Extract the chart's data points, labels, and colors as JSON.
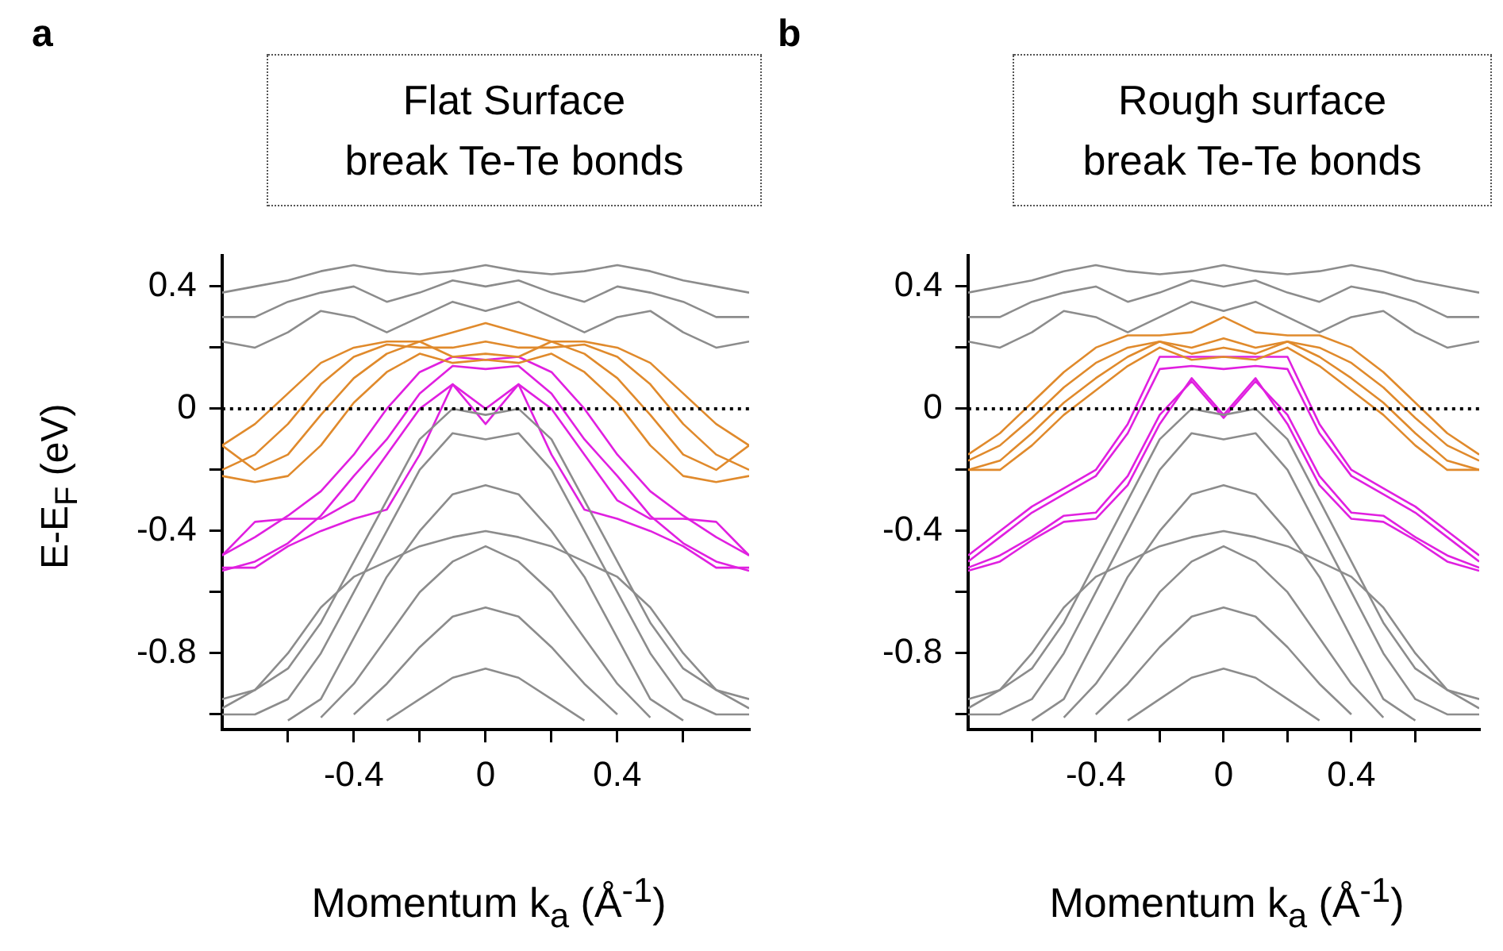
{
  "chart_data": [
    {
      "type": "line",
      "title": "Flat Surface\nbreak Te-Te bonds",
      "xlabel": "Momentum k$_{a}$  (Å$^{-1}$)",
      "ylabel": "E-E$_{F}$ (eV)",
      "annotations": [
        "a"
      ],
      "x": [
        -0.8,
        -0.7,
        -0.6,
        -0.5,
        -0.4,
        -0.3,
        -0.2,
        -0.1,
        0,
        0.1,
        0.2,
        0.3,
        0.4,
        0.5,
        0.6,
        0.7,
        0.8
      ],
      "series": [
        {
          "color": "#8c8c8c",
          "values": [
            -0.95,
            -0.92,
            -0.85,
            -0.7,
            -0.5,
            -0.3,
            -0.1,
            0,
            -0.02,
            0,
            -0.1,
            -0.3,
            -0.5,
            -0.7,
            -0.85,
            -0.92,
            -0.95
          ]
        },
        {
          "color": "#8c8c8c",
          "values": [
            -1,
            -1,
            -0.95,
            -0.8,
            -0.6,
            -0.4,
            -0.2,
            -0.08,
            -0.1,
            -0.08,
            -0.2,
            -0.4,
            -0.6,
            -0.8,
            -0.95,
            -1,
            -1
          ]
        },
        {
          "color": "#8c8c8c",
          "values": [
            null,
            null,
            -1.02,
            -0.95,
            -0.75,
            -0.55,
            -0.4,
            -0.28,
            -0.25,
            -0.28,
            -0.4,
            -0.55,
            -0.75,
            -0.95,
            -1.02,
            null,
            null
          ]
        },
        {
          "color": "#8c8c8c",
          "values": [
            null,
            null,
            null,
            -1.01,
            -0.9,
            -0.75,
            -0.6,
            -0.5,
            -0.45,
            -0.5,
            -0.6,
            -0.75,
            -0.9,
            -1.01,
            null,
            null,
            null
          ]
        },
        {
          "color": "#8c8c8c",
          "values": [
            null,
            null,
            null,
            null,
            -1,
            -0.9,
            -0.78,
            -0.68,
            -0.65,
            -0.68,
            -0.78,
            -0.9,
            -1,
            null,
            null,
            null,
            null
          ]
        },
        {
          "color": "#8c8c8c",
          "values": [
            null,
            null,
            null,
            null,
            null,
            -1.02,
            -0.95,
            -0.88,
            -0.85,
            -0.88,
            -0.95,
            -1.02,
            null,
            null,
            null,
            null,
            null
          ]
        },
        {
          "color": "#8c8c8c",
          "values": [
            -0.98,
            -0.92,
            -0.8,
            -0.65,
            -0.55,
            -0.5,
            -0.45,
            -0.42,
            -0.4,
            -0.42,
            -0.45,
            -0.5,
            -0.55,
            -0.65,
            -0.8,
            -0.92,
            -0.98
          ]
        },
        {
          "color": "#8c8c8c",
          "values": [
            0.22,
            0.2,
            0.25,
            0.32,
            0.3,
            0.25,
            0.3,
            0.35,
            0.32,
            0.35,
            0.3,
            0.25,
            0.3,
            0.32,
            0.25,
            0.2,
            0.22
          ]
        },
        {
          "color": "#8c8c8c",
          "values": [
            0.3,
            0.3,
            0.35,
            0.38,
            0.4,
            0.35,
            0.38,
            0.42,
            0.4,
            0.42,
            0.38,
            0.35,
            0.4,
            0.38,
            0.35,
            0.3,
            0.3
          ]
        },
        {
          "color": "#8c8c8c",
          "values": [
            0.38,
            0.4,
            0.42,
            0.45,
            0.47,
            0.45,
            0.44,
            0.45,
            0.47,
            0.45,
            0.44,
            0.45,
            0.47,
            0.45,
            0.42,
            0.4,
            0.38
          ]
        },
        {
          "color": "#e08a2c",
          "values": [
            -0.12,
            -0.05,
            0.05,
            0.15,
            0.2,
            0.22,
            0.22,
            0.25,
            0.28,
            0.25,
            0.22,
            0.22,
            0.2,
            0.15,
            0.05,
            -0.05,
            -0.12
          ]
        },
        {
          "color": "#e08a2c",
          "values": [
            -0.2,
            -0.15,
            -0.05,
            0.08,
            0.17,
            0.21,
            0.2,
            0.2,
            0.22,
            0.2,
            0.2,
            0.21,
            0.17,
            0.08,
            -0.05,
            -0.15,
            -0.2
          ]
        },
        {
          "color": "#e08a2c",
          "values": [
            -0.12,
            -0.2,
            -0.15,
            -0.02,
            0.1,
            0.18,
            0.22,
            0.17,
            0.18,
            0.17,
            0.22,
            0.18,
            0.1,
            -0.02,
            -0.15,
            -0.2,
            -0.12
          ]
        },
        {
          "color": "#e08a2c",
          "values": [
            -0.22,
            -0.24,
            -0.22,
            -0.12,
            0.02,
            0.12,
            0.18,
            0.15,
            0.16,
            0.15,
            0.18,
            0.12,
            0.02,
            -0.12,
            -0.22,
            -0.24,
            -0.22
          ]
        },
        {
          "color": "#e020e0",
          "values": [
            -0.48,
            -0.42,
            -0.35,
            -0.27,
            -0.15,
            0,
            0.12,
            0.17,
            0.16,
            0.17,
            0.12,
            0,
            -0.15,
            -0.27,
            -0.35,
            -0.42,
            -0.48
          ]
        },
        {
          "color": "#e020e0",
          "values": [
            -0.53,
            -0.5,
            -0.44,
            -0.35,
            -0.22,
            -0.1,
            0.05,
            0.14,
            0.13,
            0.14,
            0.05,
            -0.1,
            -0.22,
            -0.35,
            -0.44,
            -0.5,
            -0.53
          ]
        },
        {
          "color": "#e020e0",
          "values": [
            -0.52,
            -0.52,
            -0.45,
            -0.4,
            -0.36,
            -0.33,
            -0.15,
            0.08,
            -0.05,
            0.08,
            -0.15,
            -0.33,
            -0.36,
            -0.4,
            -0.45,
            -0.52,
            -0.52
          ]
        },
        {
          "color": "#e020e0",
          "values": [
            -0.48,
            -0.37,
            -0.36,
            -0.36,
            -0.3,
            -0.15,
            0,
            0.08,
            0,
            0.08,
            0,
            -0.15,
            -0.3,
            -0.36,
            -0.36,
            -0.37,
            -0.48
          ]
        }
      ],
      "xlim": [
        -0.8,
        0.8
      ],
      "ylim": [
        -1.05,
        0.5
      ],
      "xticks": [
        {
          "value": -0.6,
          "label": null
        },
        -0.4,
        {
          "value": -0.2,
          "label": null
        },
        0,
        {
          "value": 0.2,
          "label": null
        },
        0.4,
        {
          "value": 0.6,
          "label": null
        }
      ],
      "yticks": [
        {
          "value": -1,
          "label": null
        },
        -0.8,
        {
          "value": -0.6,
          "label": null
        },
        -0.4,
        {
          "value": -0.2,
          "label": null
        },
        0,
        {
          "value": 0.2,
          "label": null
        },
        0.4
      ],
      "ref_lines": [
        {
          "axis": "y",
          "value": 0,
          "color": "#000000",
          "line_style": "dotted"
        }
      ],
      "grid": false,
      "legend": false
    },
    {
      "type": "line",
      "title": "Rough surface\nbreak Te-Te bonds",
      "xlabel": "Momentum k$_{a}$  (Å$^{-1}$)",
      "annotations": [
        "b"
      ],
      "x": [
        -0.8,
        -0.7,
        -0.6,
        -0.5,
        -0.4,
        -0.3,
        -0.2,
        -0.1,
        0,
        0.1,
        0.2,
        0.3,
        0.4,
        0.5,
        0.6,
        0.7,
        0.8
      ],
      "series": [
        {
          "color": "#8c8c8c",
          "values": [
            -0.95,
            -0.92,
            -0.85,
            -0.7,
            -0.5,
            -0.3,
            -0.1,
            0,
            -0.02,
            0,
            -0.1,
            -0.3,
            -0.5,
            -0.7,
            -0.85,
            -0.92,
            -0.95
          ]
        },
        {
          "color": "#8c8c8c",
          "values": [
            -1,
            -1,
            -0.95,
            -0.8,
            -0.6,
            -0.4,
            -0.2,
            -0.08,
            -0.1,
            -0.08,
            -0.2,
            -0.4,
            -0.6,
            -0.8,
            -0.95,
            -1,
            -1
          ]
        },
        {
          "color": "#8c8c8c",
          "values": [
            null,
            null,
            -1.02,
            -0.95,
            -0.75,
            -0.55,
            -0.4,
            -0.28,
            -0.25,
            -0.28,
            -0.4,
            -0.55,
            -0.75,
            -0.95,
            -1.02,
            null,
            null
          ]
        },
        {
          "color": "#8c8c8c",
          "values": [
            null,
            null,
            null,
            -1.01,
            -0.9,
            -0.75,
            -0.6,
            -0.5,
            -0.45,
            -0.5,
            -0.6,
            -0.75,
            -0.9,
            -1.01,
            null,
            null,
            null
          ]
        },
        {
          "color": "#8c8c8c",
          "values": [
            null,
            null,
            null,
            null,
            -1,
            -0.9,
            -0.78,
            -0.68,
            -0.65,
            -0.68,
            -0.78,
            -0.9,
            -1,
            null,
            null,
            null,
            null
          ]
        },
        {
          "color": "#8c8c8c",
          "values": [
            null,
            null,
            null,
            null,
            null,
            -1.02,
            -0.95,
            -0.88,
            -0.85,
            -0.88,
            -0.95,
            -1.02,
            null,
            null,
            null,
            null,
            null
          ]
        },
        {
          "color": "#8c8c8c",
          "values": [
            -0.98,
            -0.92,
            -0.8,
            -0.65,
            -0.55,
            -0.5,
            -0.45,
            -0.42,
            -0.4,
            -0.42,
            -0.45,
            -0.5,
            -0.55,
            -0.65,
            -0.8,
            -0.92,
            -0.98
          ]
        },
        {
          "color": "#8c8c8c",
          "values": [
            0.22,
            0.2,
            0.25,
            0.32,
            0.3,
            0.25,
            0.3,
            0.35,
            0.32,
            0.35,
            0.3,
            0.25,
            0.3,
            0.32,
            0.25,
            0.2,
            0.22
          ]
        },
        {
          "color": "#8c8c8c",
          "values": [
            0.3,
            0.3,
            0.35,
            0.38,
            0.4,
            0.35,
            0.38,
            0.42,
            0.4,
            0.42,
            0.38,
            0.35,
            0.4,
            0.38,
            0.35,
            0.3,
            0.3
          ]
        },
        {
          "color": "#8c8c8c",
          "values": [
            0.38,
            0.4,
            0.42,
            0.45,
            0.47,
            0.45,
            0.44,
            0.45,
            0.47,
            0.45,
            0.44,
            0.45,
            0.47,
            0.45,
            0.42,
            0.4,
            0.38
          ]
        },
        {
          "color": "#e08a2c",
          "values": [
            -0.15,
            -0.08,
            0.02,
            0.12,
            0.2,
            0.24,
            0.24,
            0.25,
            0.3,
            0.25,
            0.24,
            0.24,
            0.2,
            0.12,
            0.02,
            -0.08,
            -0.15
          ]
        },
        {
          "color": "#e08a2c",
          "values": [
            -0.17,
            -0.12,
            -0.03,
            0.07,
            0.15,
            0.2,
            0.22,
            0.2,
            0.23,
            0.2,
            0.22,
            0.2,
            0.15,
            0.07,
            -0.03,
            -0.12,
            -0.17
          ]
        },
        {
          "color": "#e08a2c",
          "values": [
            -0.2,
            -0.17,
            -0.08,
            0.02,
            0.1,
            0.17,
            0.22,
            0.18,
            0.2,
            0.18,
            0.22,
            0.17,
            0.1,
            0.02,
            -0.08,
            -0.17,
            -0.2
          ]
        },
        {
          "color": "#e08a2c",
          "values": [
            -0.2,
            -0.2,
            -0.12,
            -0.02,
            0.06,
            0.14,
            0.2,
            0.16,
            0.17,
            0.16,
            0.2,
            0.14,
            0.06,
            -0.02,
            -0.12,
            -0.2,
            -0.2
          ]
        },
        {
          "color": "#e020e0",
          "values": [
            -0.48,
            -0.4,
            -0.32,
            -0.26,
            -0.2,
            -0.05,
            0.17,
            0.17,
            0.17,
            0.17,
            0.17,
            -0.05,
            -0.2,
            -0.26,
            -0.32,
            -0.4,
            -0.48
          ]
        },
        {
          "color": "#e020e0",
          "values": [
            -0.5,
            -0.42,
            -0.34,
            -0.28,
            -0.22,
            -0.08,
            0.13,
            0.14,
            0.13,
            0.14,
            0.13,
            -0.08,
            -0.22,
            -0.28,
            -0.34,
            -0.42,
            -0.5
          ]
        },
        {
          "color": "#e020e0",
          "values": [
            -0.53,
            -0.5,
            -0.43,
            -0.37,
            -0.36,
            -0.25,
            -0.05,
            0.1,
            -0.02,
            0.1,
            -0.05,
            -0.25,
            -0.36,
            -0.37,
            -0.43,
            -0.5,
            -0.53
          ]
        },
        {
          "color": "#e020e0",
          "values": [
            -0.52,
            -0.48,
            -0.42,
            -0.35,
            -0.34,
            -0.22,
            -0.02,
            0.09,
            -0.03,
            0.09,
            -0.02,
            -0.22,
            -0.34,
            -0.35,
            -0.42,
            -0.48,
            -0.52
          ]
        }
      ],
      "xlim": [
        -0.8,
        0.8
      ],
      "ylim": [
        -1.05,
        0.5
      ],
      "xticks": [
        {
          "value": -0.6,
          "label": null
        },
        -0.4,
        {
          "value": -0.2,
          "label": null
        },
        0,
        {
          "value": 0.2,
          "label": null
        },
        0.4,
        {
          "value": 0.6,
          "label": null
        }
      ],
      "yticks": [
        {
          "value": -1,
          "label": null
        },
        -0.8,
        {
          "value": -0.6,
          "label": null
        },
        -0.4,
        {
          "value": -0.2,
          "label": null
        },
        0,
        {
          "value": 0.2,
          "label": null
        },
        0.4
      ],
      "ref_lines": [
        {
          "axis": "y",
          "value": 0,
          "color": "#000000",
          "line_style": "dotted"
        }
      ],
      "grid": false,
      "legend": false
    }
  ]
}
